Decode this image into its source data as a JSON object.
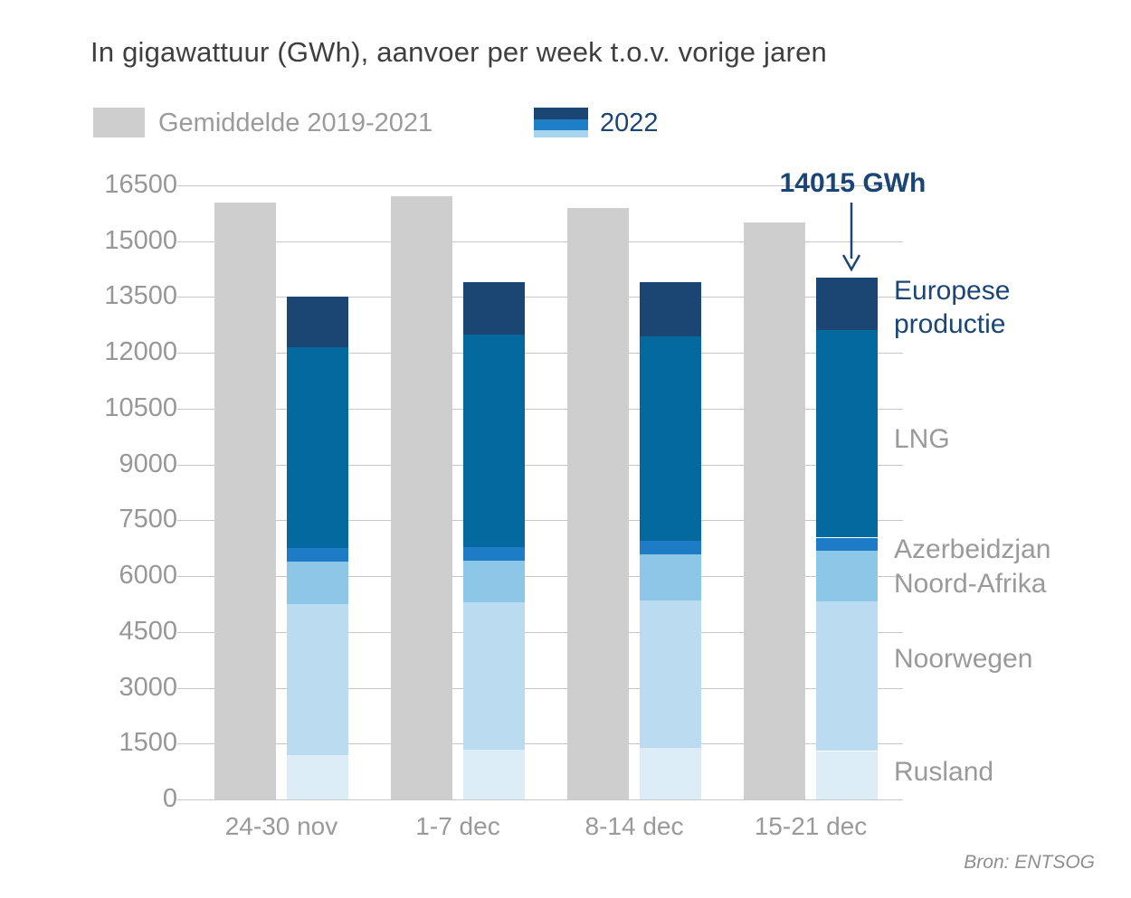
{
  "title": "In gigawattuur (GWh), aanvoer per week t.o.v. vorige jaren",
  "legend": {
    "average_label": "Gemiddelde 2019-2021",
    "year_label": "2022"
  },
  "source": "Bron: ENTSOG",
  "colors": {
    "title_text": "#3f3f3f",
    "axis_text": "#979797",
    "grid": "#c7c7c7",
    "average_bar": "#cecece",
    "navy": "#1b4674",
    "legend_stripe_top": "#1b4674",
    "legend_stripe_mid": "#1e7ec7",
    "legend_stripe_bottom": "#a9d4ee"
  },
  "chart_data": {
    "type": "bar",
    "title": "In gigawattuur (GWh), aanvoer per week t.o.v. vorige jaren",
    "xlabel": "",
    "ylabel": "GWh",
    "ylim": [
      0,
      16500
    ],
    "y_ticks": [
      0,
      1500,
      3000,
      4500,
      6000,
      7500,
      9000,
      10500,
      12000,
      13500,
      15000,
      16500
    ],
    "grid": true,
    "legend_position": "top-left",
    "categories": [
      "24-30 nov",
      "1-7 dec",
      "8-14 dec",
      "15-21 dec"
    ],
    "series_average": {
      "name": "Gemiddelde 2019-2021",
      "color": "#cecece",
      "values": [
        16050,
        16200,
        15900,
        15500
      ]
    },
    "stacked_2022": {
      "name": "2022",
      "totals": [
        13500,
        13900,
        13900,
        14015
      ],
      "segments": [
        {
          "label": "Rusland",
          "color": "#dcedf7",
          "label_color": "#9a9a9a",
          "values": [
            1200,
            1350,
            1400,
            1300
          ]
        },
        {
          "label": "Noorwegen",
          "color": "#badbf0",
          "label_color": "#9a9a9a",
          "values": [
            4050,
            3950,
            3950,
            4010
          ]
        },
        {
          "label": "Noord-Afrika",
          "color": "#8dc7e8",
          "label_color": "#9a9a9a",
          "values": [
            1140,
            1120,
            1240,
            1390
          ]
        },
        {
          "label": "Azerbeidzjan",
          "color": "#1d7cc5",
          "label_color": "#9a9a9a",
          "values": [
            360,
            380,
            360,
            330
          ]
        },
        {
          "label": "LNG",
          "color": "#04699e",
          "label_color": "#9a9a9a",
          "values": [
            5400,
            5700,
            5500,
            5570
          ]
        },
        {
          "label": "Europese productie",
          "color": "#1b4674",
          "label_color": "#1b4674",
          "values": [
            1350,
            1400,
            1450,
            1415
          ]
        }
      ]
    },
    "annotation": {
      "text": "14015 GWh",
      "target_category": "15-21 dec",
      "target_value": 14015
    }
  }
}
